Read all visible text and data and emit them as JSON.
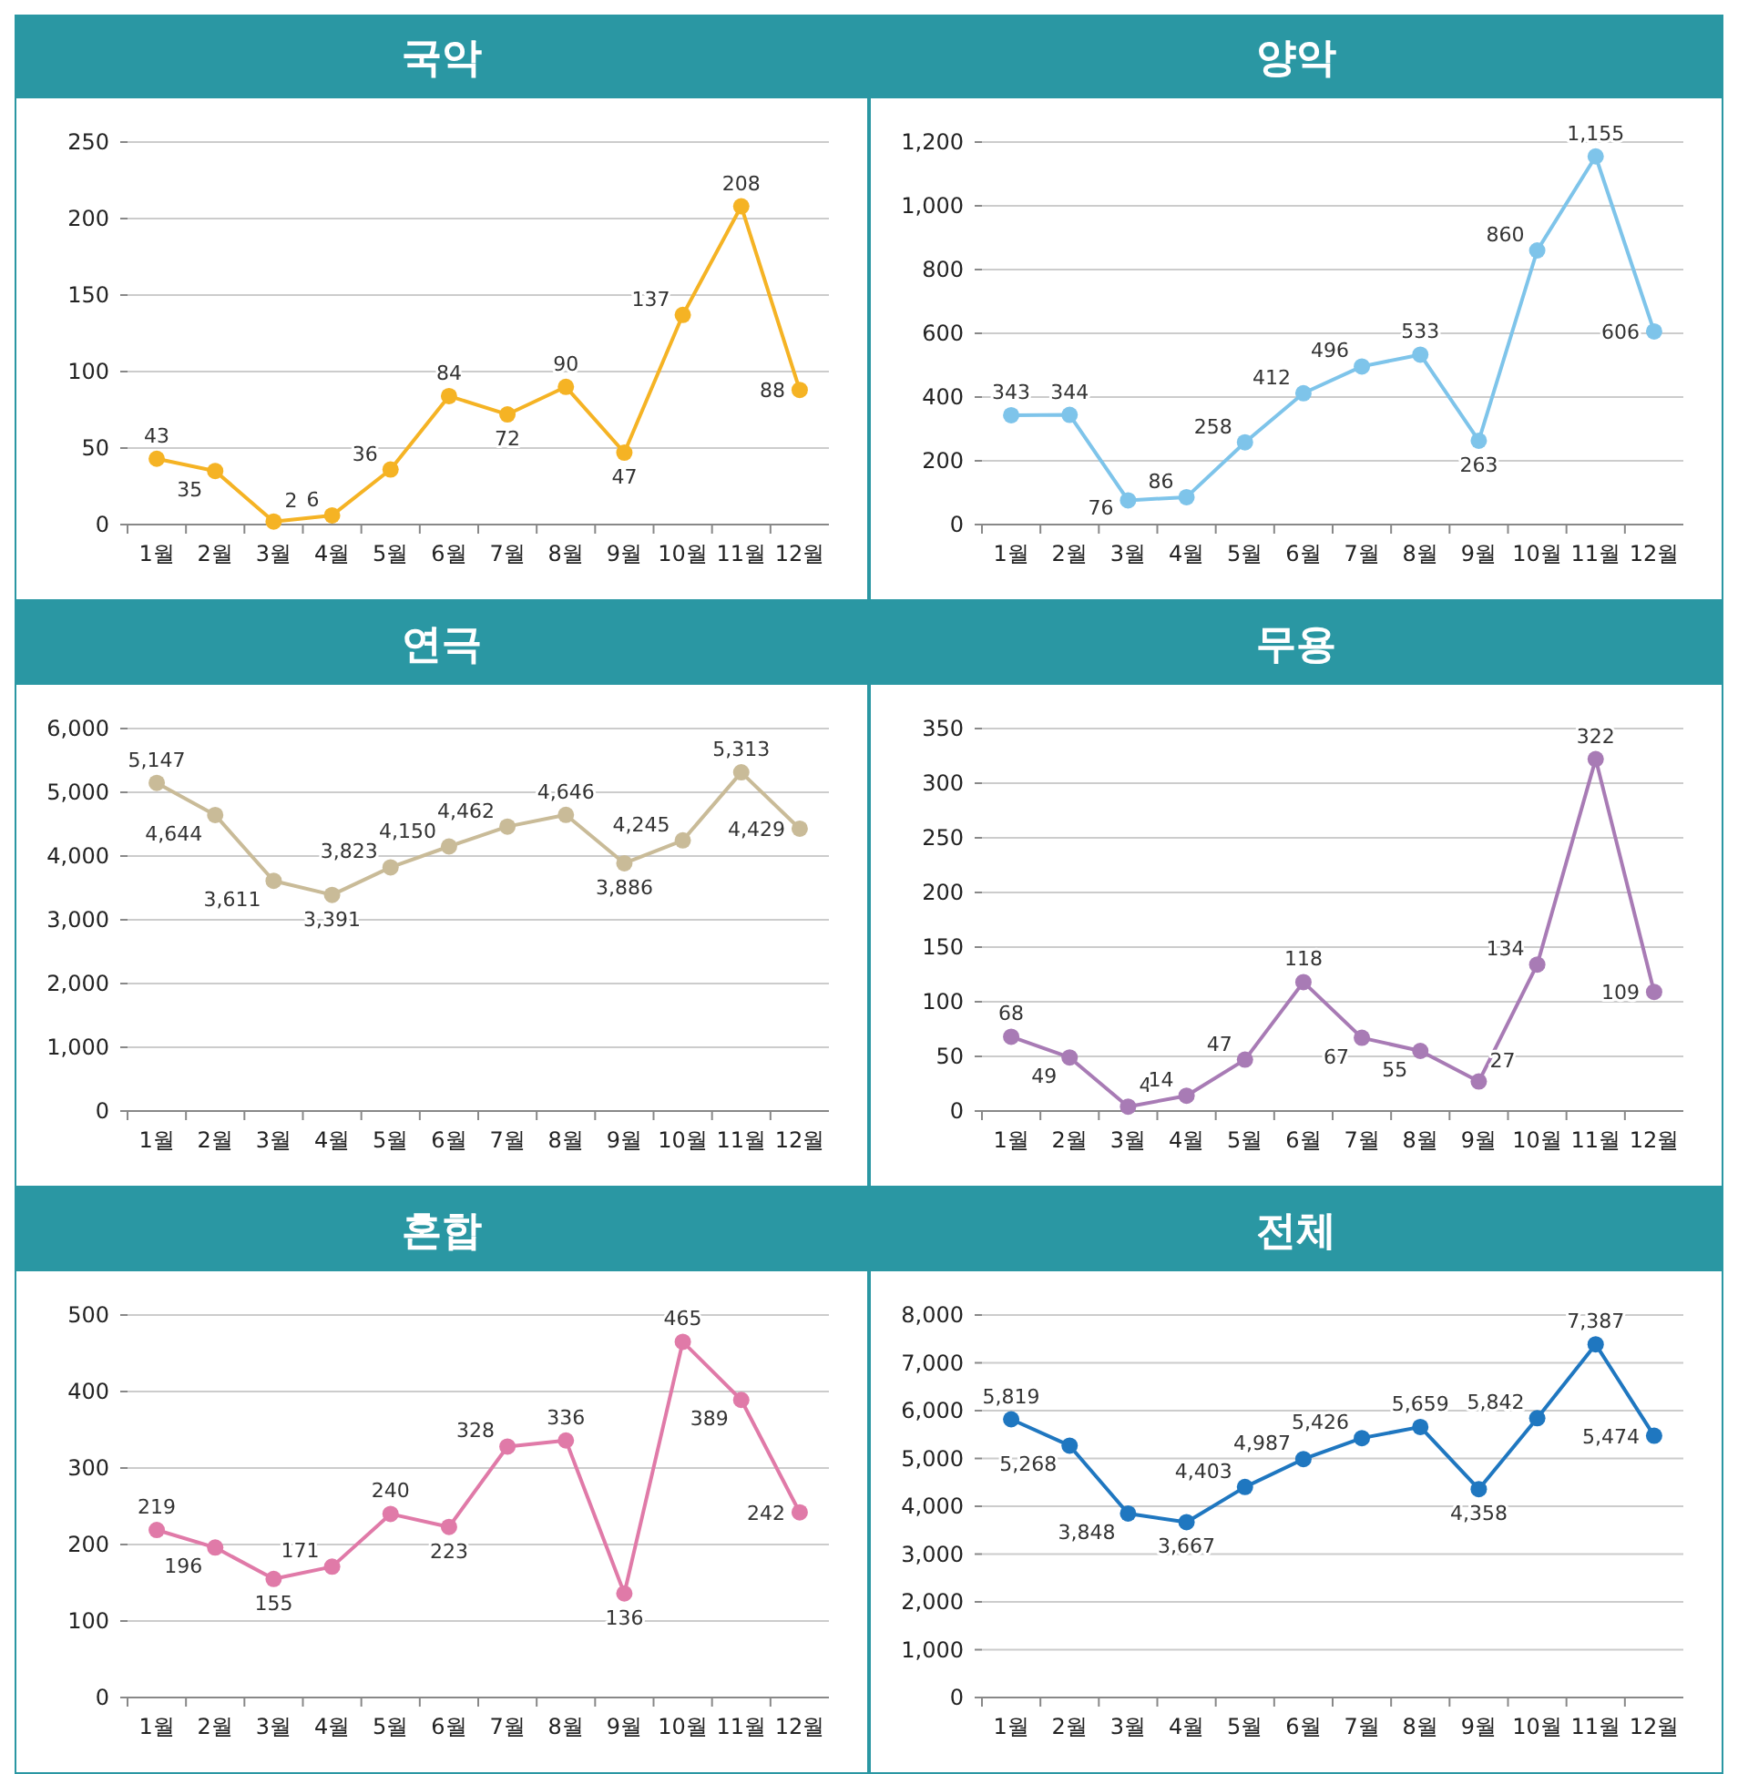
{
  "chart_data": [
    {
      "type": "line",
      "title": "국악",
      "categories": [
        "1월",
        "2월",
        "3월",
        "4월",
        "5월",
        "6월",
        "7월",
        "8월",
        "9월",
        "10월",
        "11월",
        "12월"
      ],
      "series": [
        {
          "color": "#f5b324",
          "values": [
            43,
            35,
            2,
            6,
            36,
            84,
            72,
            90,
            47,
            137,
            208,
            88
          ],
          "value_labels": [
            "43",
            "35",
            "2",
            "6",
            "36",
            "84",
            "72",
            "90",
            "47",
            "137",
            "208",
            "88"
          ]
        }
      ],
      "ylim": [
        0,
        250
      ],
      "yticks": [
        0,
        50,
        100,
        150,
        200,
        250
      ],
      "grid": "y",
      "marker": "circle"
    },
    {
      "type": "line",
      "title": "양악",
      "categories": [
        "1월",
        "2월",
        "3월",
        "4월",
        "5월",
        "6월",
        "7월",
        "8월",
        "9월",
        "10월",
        "11월",
        "12월"
      ],
      "series": [
        {
          "color": "#7ec4ea",
          "values": [
            343,
            344,
            76,
            86,
            258,
            412,
            496,
            533,
            263,
            860,
            1155,
            606
          ],
          "value_labels": [
            "343",
            "344",
            "76",
            "86",
            "258",
            "412",
            "496",
            "533",
            "263",
            "860",
            "1,155",
            "606"
          ]
        }
      ],
      "ylim": [
        0,
        1200
      ],
      "yticks": [
        0,
        200,
        400,
        600,
        800,
        {
          "value": 1000,
          "label": "1,000"
        },
        {
          "value": 1200,
          "label": "1,200"
        }
      ],
      "grid": "y",
      "marker": "circle"
    },
    {
      "type": "line",
      "title": "연극",
      "categories": [
        "1월",
        "2월",
        "3월",
        "4월",
        "5월",
        "6월",
        "7월",
        "8월",
        "9월",
        "10월",
        "11월",
        "12월"
      ],
      "series": [
        {
          "color": "#c9bb98",
          "values": [
            5147,
            4644,
            3611,
            3391,
            3823,
            4150,
            4462,
            4646,
            3886,
            4245,
            5313,
            4429
          ],
          "value_labels": [
            "5,147",
            "4,644",
            "3,611",
            "3,391",
            "3,823",
            "4,150",
            "4,462",
            "4,646",
            "3,886",
            "4,245",
            "5,313",
            "4,429"
          ]
        }
      ],
      "ylim": [
        0,
        6000
      ],
      "yticks": [
        0,
        {
          "value": 1000,
          "label": "1,000"
        },
        {
          "value": 2000,
          "label": "2,000"
        },
        {
          "value": 3000,
          "label": "3,000"
        },
        {
          "value": 4000,
          "label": "4,000"
        },
        {
          "value": 5000,
          "label": "5,000"
        },
        {
          "value": 6000,
          "label": "6,000"
        }
      ],
      "grid": "y",
      "marker": "circle"
    },
    {
      "type": "line",
      "title": "무용",
      "categories": [
        "1월",
        "2월",
        "3월",
        "4월",
        "5월",
        "6월",
        "7월",
        "8월",
        "9월",
        "10월",
        "11월",
        "12월"
      ],
      "series": [
        {
          "color": "#a87bb5",
          "values": [
            68,
            49,
            4,
            14,
            47,
            118,
            67,
            55,
            27,
            134,
            322,
            109
          ],
          "value_labels": [
            "68",
            "49",
            "4",
            "14",
            "47",
            "118",
            "67",
            "55",
            "27",
            "134",
            "322",
            "109"
          ]
        }
      ],
      "ylim": [
        0,
        350
      ],
      "yticks": [
        0,
        50,
        100,
        150,
        200,
        250,
        300,
        350
      ],
      "grid": "y",
      "marker": "circle"
    },
    {
      "type": "line",
      "title": "혼합",
      "categories": [
        "1월",
        "2월",
        "3월",
        "4월",
        "5월",
        "6월",
        "7월",
        "8월",
        "9월",
        "10월",
        "11월",
        "12월"
      ],
      "series": [
        {
          "color": "#e07aa8",
          "values": [
            219,
            196,
            155,
            171,
            240,
            223,
            328,
            336,
            136,
            465,
            389,
            242
          ],
          "value_labels": [
            "219",
            "196",
            "155",
            "171",
            "240",
            "223",
            "328",
            "336",
            "136",
            "465",
            "389",
            "242"
          ]
        }
      ],
      "ylim": [
        0,
        500
      ],
      "yticks": [
        0,
        100,
        200,
        300,
        400,
        500
      ],
      "grid": "y",
      "marker": "circle"
    },
    {
      "type": "line",
      "title": "전체",
      "categories": [
        "1월",
        "2월",
        "3월",
        "4월",
        "5월",
        "6월",
        "7월",
        "8월",
        "9월",
        "10월",
        "11월",
        "12월"
      ],
      "series": [
        {
          "color": "#1f77c0",
          "values": [
            5819,
            5268,
            3848,
            3667,
            4403,
            4987,
            5426,
            5659,
            4358,
            5842,
            7387,
            5474
          ],
          "value_labels": [
            "5,819",
            "5,268",
            "3,848",
            "3,667",
            "4,403",
            "4,987",
            "5,426",
            "5,659",
            "4,358",
            "5,842",
            "7,387",
            "5,474"
          ]
        }
      ],
      "ylim": [
        0,
        8000
      ],
      "yticks": [
        0,
        {
          "value": 1000,
          "label": "1,000"
        },
        {
          "value": 2000,
          "label": "2,000"
        },
        {
          "value": 3000,
          "label": "3,000"
        },
        {
          "value": 4000,
          "label": "4,000"
        },
        {
          "value": 5000,
          "label": "5,000"
        },
        {
          "value": 6000,
          "label": "6,000"
        },
        {
          "value": 7000,
          "label": "7,000"
        },
        {
          "value": 8000,
          "label": "8,000"
        }
      ],
      "grid": "y",
      "marker": "circle"
    }
  ]
}
